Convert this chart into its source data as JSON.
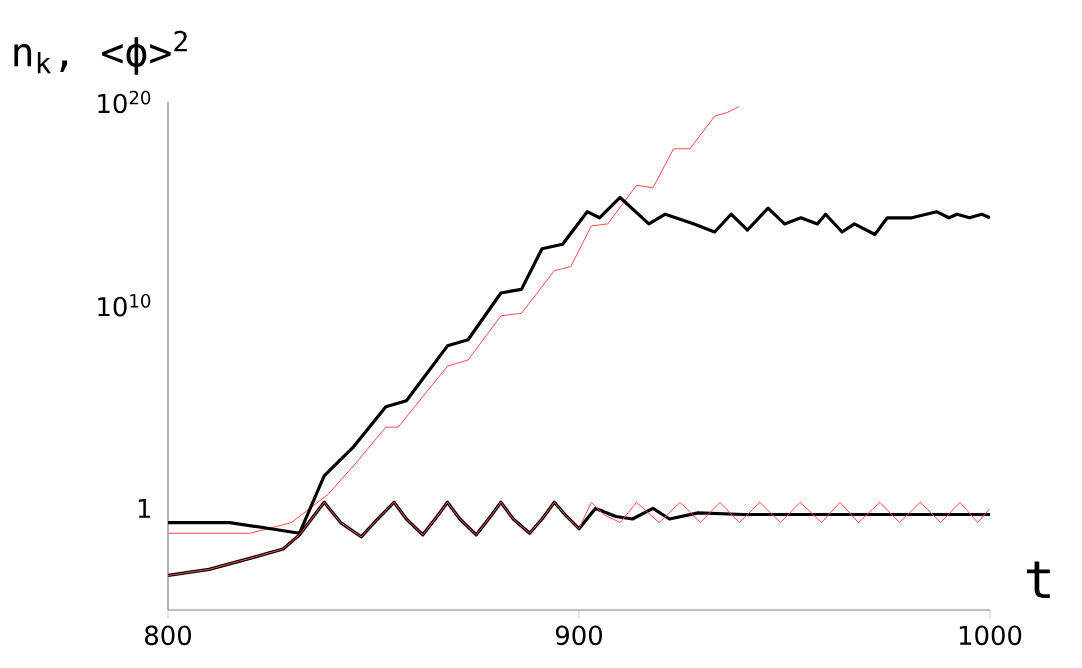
{
  "chart_data": {
    "type": "line",
    "ylabel": "n$_{k}$, <ϕ>$^{2}$",
    "xlabel": "t",
    "log": "y",
    "xlim": [
      800,
      1000
    ],
    "ylim": [
      1e-05,
      1e+20
    ],
    "xticks": [
      800,
      900,
      1000
    ],
    "yticks": [
      1,
      {
        "value": 10000000000.0,
        "label": "10$^{10}$"
      },
      {
        "value": 1e+20,
        "label": "10$^{20}$"
      }
    ],
    "grid": false,
    "marker": "none",
    "line_style": "solid",
    "series": [
      {
        "color": "#ff4c4c",
        "x": [
          800,
          820,
          830,
          839,
          846,
          853,
          856,
          868,
          873,
          881,
          886,
          894,
          898,
          903,
          907,
          914,
          918,
          923,
          927,
          933,
          936,
          939
        ],
        "values": [
          0.06,
          0.06,
          0.2,
          5,
          200,
          10000.0,
          10000.0,
          10000000.0,
          20000000.0,
          3000000000.0,
          4000000000.0,
          500000000000.0,
          800000000000.0,
          80000000000000.0,
          100000000000000.0,
          8000000000000000.0,
          6000000000000000.0,
          5e+17,
          5e+17,
          2e+19,
          3e+19,
          6e+19
        ]
      },
      {
        "color": "#000000",
        "x": [
          800,
          815,
          825,
          832,
          838,
          845,
          853,
          858,
          868,
          873,
          881,
          886,
          891,
          896,
          902,
          905,
          910,
          917,
          921,
          928,
          933,
          937,
          941,
          946,
          950,
          954,
          958,
          960,
          964,
          967,
          972,
          975,
          981,
          987,
          990,
          992,
          995,
          998,
          1000
        ],
        "values": [
          0.2,
          0.2,
          0.1,
          0.06,
          40,
          1000,
          100000.0,
          200000.0,
          100000000.0,
          200000000.0,
          40000000000.0,
          60000000000.0,
          6000000000000.0,
          10000000000000.0,
          400000000000000.0,
          200000000000000.0,
          2000000000000000.0,
          100000000000000.0,
          300000000000000.0,
          100000000000000.0,
          40000000000000.0,
          300000000000000.0,
          50000000000000.0,
          600000000000000.0,
          100000000000000.0,
          200000000000000.0,
          100000000000000.0,
          300000000000000.0,
          40000000000000.0,
          100000000000000.0,
          30000000000000.0,
          200000000000000.0,
          200000000000000.0,
          400000000000000.0,
          200000000000000.0,
          300000000000000.0,
          200000000000000.0,
          300000000000000.0,
          200000000000000.0
        ]
      },
      {
        "color": "#000000",
        "x": [
          800,
          810,
          821,
          828,
          832,
          838,
          842,
          847,
          851,
          855,
          858,
          862,
          865,
          868,
          871,
          875,
          878,
          881,
          884,
          888,
          891,
          894,
          897,
          900,
          904,
          909,
          913,
          918,
          922,
          929,
          940,
          960,
          1000
        ],
        "values": [
          0.0005,
          0.001,
          0.004,
          0.01,
          0.05,
          2,
          0.2,
          0.04,
          0.3,
          2,
          0.3,
          0.05,
          0.3,
          2,
          0.3,
          0.05,
          0.3,
          2,
          0.3,
          0.06,
          0.3,
          2,
          0.4,
          0.1,
          1,
          0.4,
          0.3,
          1,
          0.3,
          0.6,
          0.5,
          0.5,
          0.5
        ]
      },
      {
        "color": "#ff4c4c",
        "x": [
          800,
          810,
          821,
          828,
          832,
          838,
          842,
          847,
          851,
          855,
          858,
          862,
          865,
          868,
          871,
          875,
          878,
          881,
          884,
          888,
          891,
          894,
          897,
          900,
          903,
          906,
          910,
          914,
          919.5,
          924.6,
          929.5,
          934.3,
          939,
          944,
          949,
          953.8,
          959,
          963.5,
          968,
          973.2,
          978,
          983,
          988,
          992.7,
          997,
          1000
        ],
        "values": [
          0.0005,
          0.001,
          0.004,
          0.01,
          0.05,
          2,
          0.2,
          0.04,
          0.3,
          2,
          0.3,
          0.05,
          0.3,
          2,
          0.3,
          0.05,
          0.3,
          2,
          0.3,
          0.06,
          0.3,
          2,
          0.4,
          0.1,
          2,
          0.5,
          0.2,
          2,
          0.2,
          2,
          0.2,
          2,
          0.2,
          2,
          0.2,
          2,
          0.2,
          2,
          0.2,
          2,
          0.2,
          2,
          0.2,
          2,
          0.2,
          1
        ]
      }
    ]
  }
}
